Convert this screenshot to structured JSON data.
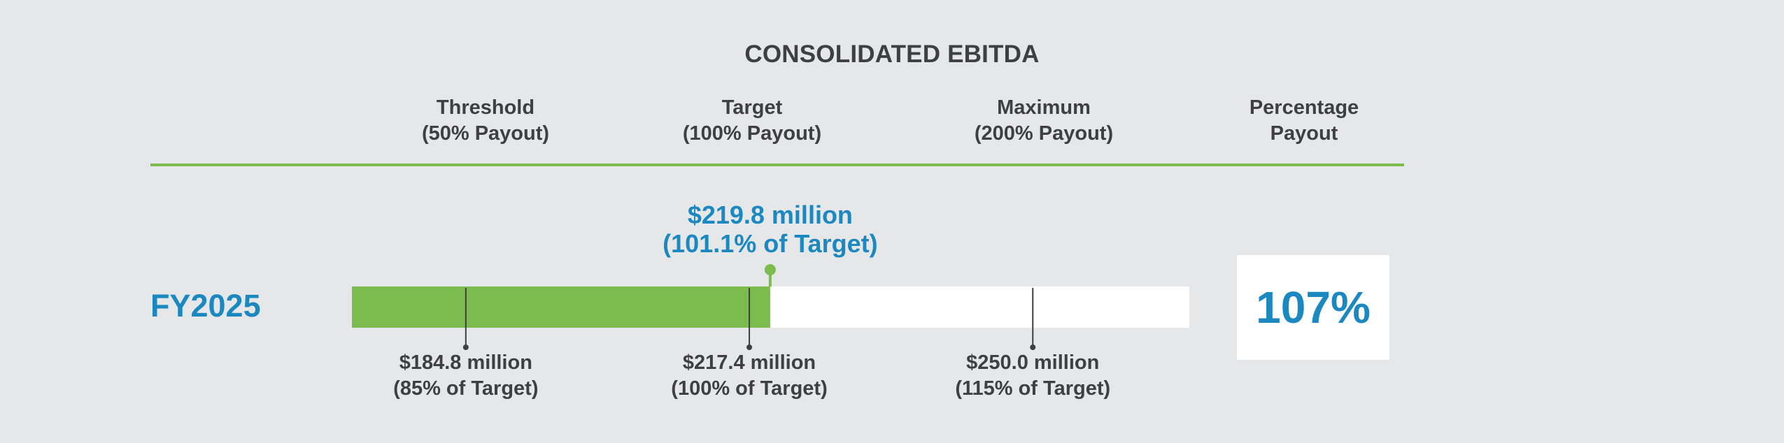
{
  "chart_data": {
    "type": "bar",
    "title": "CONSOLIDATED EBITDA",
    "columns": [
      {
        "key": "threshold",
        "line1": "Threshold",
        "line2": "(50% Payout)"
      },
      {
        "key": "target",
        "line1": "Target",
        "line2": "(100% Payout)"
      },
      {
        "key": "maximum",
        "line1": "Maximum",
        "line2": "(200% Payout)"
      },
      {
        "key": "percentage",
        "line1": "Percentage",
        "line2": "Payout"
      }
    ],
    "row": {
      "label": "FY2025",
      "actual_value": 219.8,
      "actual_line1": "$219.8 million",
      "actual_line2": "(101.1% of Target)",
      "payout_percentage": "107%"
    },
    "scale": {
      "min": 171.7,
      "max": 268.0,
      "unit": "$ million"
    },
    "markers": [
      {
        "key": "threshold",
        "value": 184.8,
        "line1": "$184.8 million",
        "line2": "(85% of Target)"
      },
      {
        "key": "target",
        "value": 217.4,
        "line1": "$217.4 million",
        "line2": "(100% of Target)"
      },
      {
        "key": "maximum",
        "value": 250.0,
        "line1": "$250.0 million",
        "line2": "(115% of Target)"
      }
    ],
    "colors": {
      "fill": "#7cbc4e",
      "track": "#ffffff",
      "accent": "#1b88bf",
      "text": "#3f3f41",
      "background": "#e6e7e9"
    }
  }
}
